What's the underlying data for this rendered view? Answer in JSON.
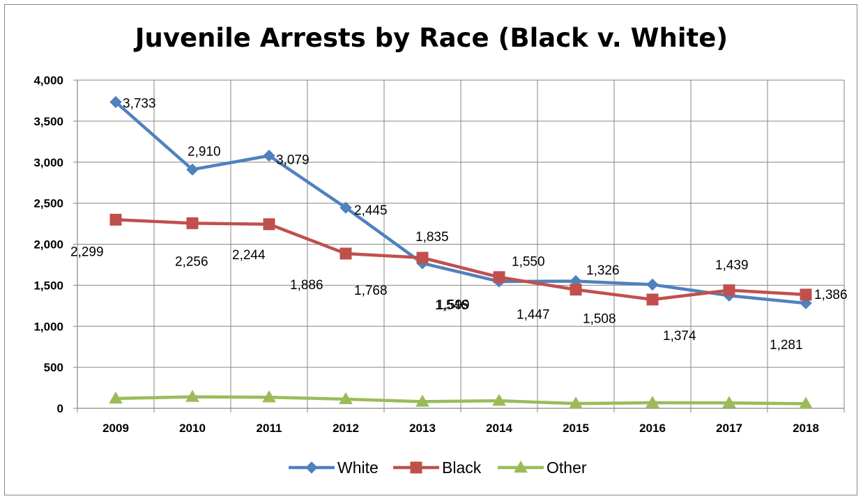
{
  "chart_data": {
    "type": "line",
    "title": "Juvenile Arrests by Race (Black v. White)",
    "xlabel": "",
    "ylabel": "",
    "categories": [
      "2009",
      "2010",
      "2011",
      "2012",
      "2013",
      "2014",
      "2015",
      "2016",
      "2017",
      "2018"
    ],
    "ylim": [
      0,
      4000
    ],
    "y_ticks": [
      0,
      500,
      1000,
      1500,
      2000,
      2500,
      3000,
      3500,
      4000
    ],
    "y_tick_labels": [
      "0",
      "500",
      "1,000",
      "1,500",
      "2,000",
      "2,500",
      "3,000",
      "3,500",
      "4,000"
    ],
    "grid": true,
    "legend_position": "bottom",
    "series": [
      {
        "name": "White",
        "color": "#4F81BD",
        "marker": "diamond",
        "values": [
          3733,
          2910,
          3079,
          2445,
          1768,
          1546,
          1550,
          1508,
          1374,
          1281
        ],
        "labels": [
          "3,733",
          "2,910",
          "3,079",
          "2,445",
          "1,768",
          "1,546",
          "1,550",
          "1,508",
          "1,374",
          "1,281"
        ]
      },
      {
        "name": "Black",
        "color": "#C0504D",
        "marker": "square",
        "values": [
          2299,
          2256,
          2244,
          1886,
          1835,
          1599,
          1447,
          1326,
          1439,
          1386
        ],
        "labels": [
          "2,299",
          "2,256",
          "2,244",
          "1,886",
          "1,835",
          "1,599",
          "1,447",
          "1,326",
          "1,439",
          "1,386"
        ]
      },
      {
        "name": "Other",
        "color": "#9BBB59",
        "marker": "triangle",
        "values": [
          120,
          140,
          135,
          112,
          82,
          92,
          58,
          68,
          66,
          56
        ],
        "labels": []
      }
    ]
  }
}
